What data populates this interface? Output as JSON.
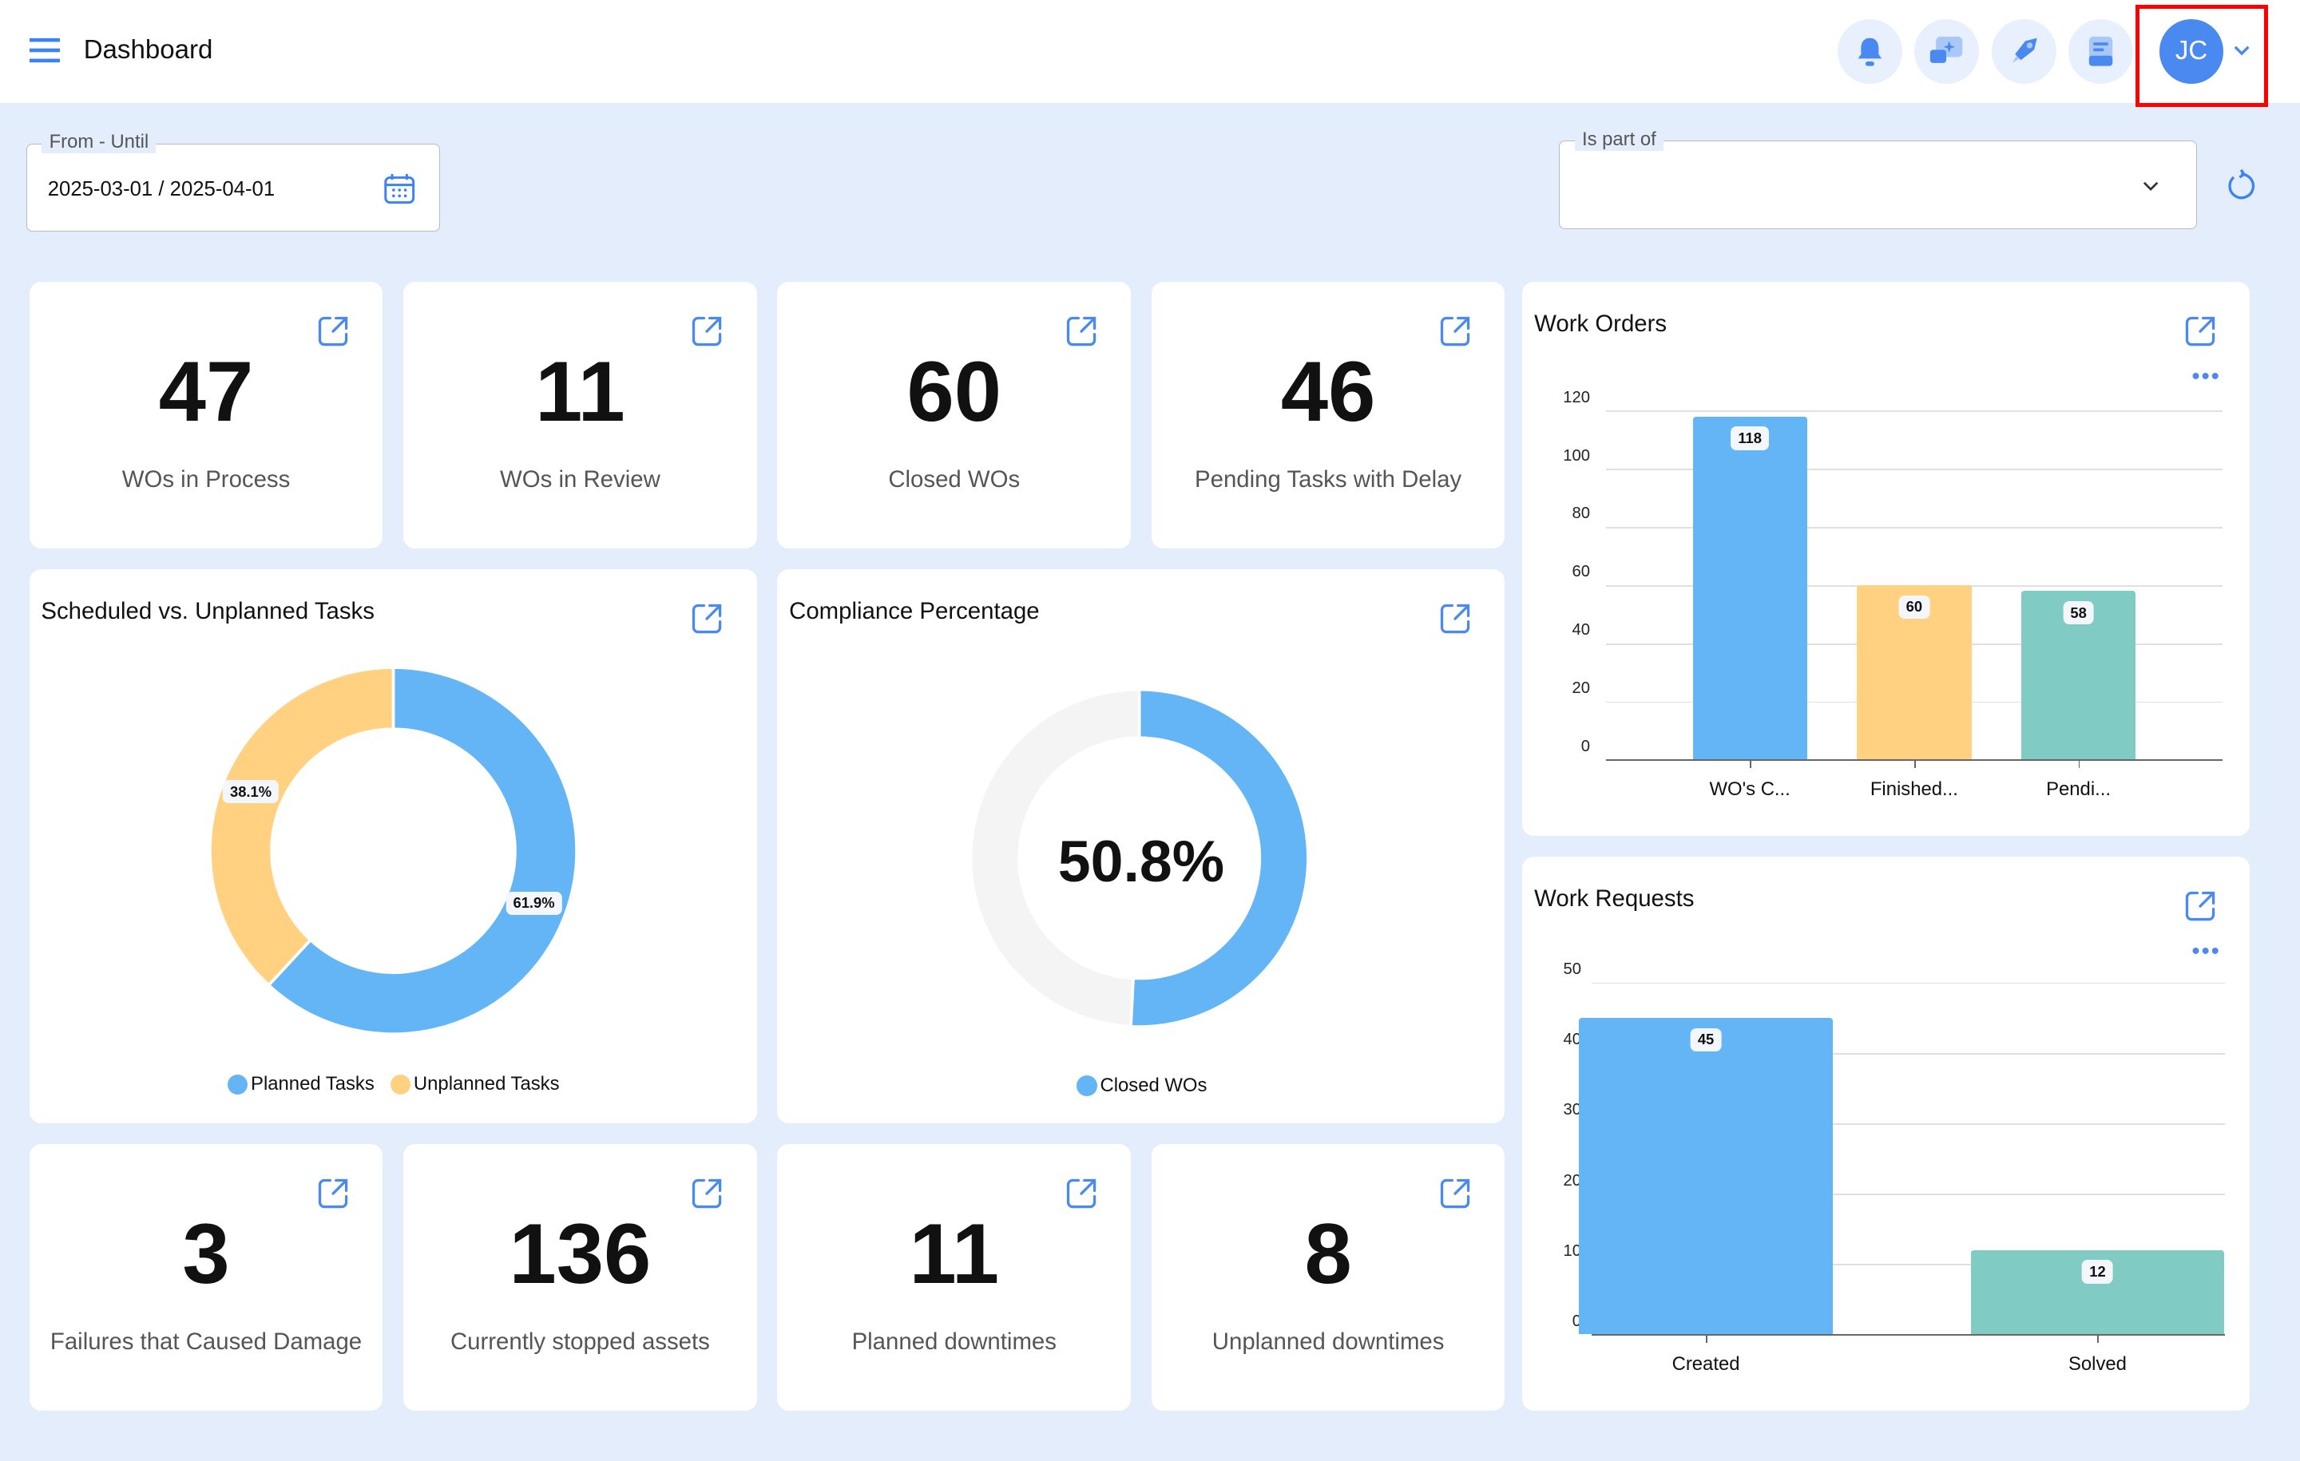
{
  "header": {
    "title": "Dashboard",
    "avatar_initials": "JC",
    "icons": [
      "bell-icon",
      "ai-chat-icon",
      "rocket-icon",
      "book-icon"
    ]
  },
  "filters": {
    "date_label": "From - Until",
    "date_value": "2025-03-01 / 2025-04-01",
    "part_of_label": "Is part of",
    "part_of_value": ""
  },
  "kpis_top": [
    {
      "value": "47",
      "label": "WOs in Process"
    },
    {
      "value": "11",
      "label": "WOs in Review"
    },
    {
      "value": "60",
      "label": "Closed WOs"
    },
    {
      "value": "46",
      "label": "Pending Tasks with Delay"
    }
  ],
  "kpis_bottom": [
    {
      "value": "3",
      "label": "Failures that Caused Damage"
    },
    {
      "value": "136",
      "label": "Currently stopped assets"
    },
    {
      "value": "11",
      "label": "Planned downtimes"
    },
    {
      "value": "8",
      "label": "Unplanned downtimes"
    }
  ],
  "colors": {
    "blue": "#64b5f6",
    "yellow": "#ffd180",
    "teal": "#80cbc4",
    "accent": "#4a8af0",
    "highlight": "#ff0000"
  },
  "chart_data": [
    {
      "type": "pie",
      "title": "Scheduled vs. Unplanned Tasks",
      "donut": true,
      "slices": [
        {
          "name": "Planned Tasks",
          "value": 61.9,
          "label": "61.9%"
        },
        {
          "name": "Unplanned Tasks",
          "value": 38.1,
          "label": "38.1%"
        }
      ],
      "legend": "bottom"
    },
    {
      "type": "pie",
      "title": "Compliance Percentage",
      "donut": true,
      "center_label": "50.8%",
      "slices": [
        {
          "name": "Closed WOs",
          "value": 50.8
        }
      ],
      "legend": "bottom"
    },
    {
      "type": "bar",
      "title": "Work Orders",
      "categories": [
        "WO's C...",
        "Finished...",
        "Pendi..."
      ],
      "values": [
        118,
        60,
        58
      ],
      "ylim": [
        0,
        120
      ],
      "yticks": [
        "0",
        "20",
        "40",
        "60",
        "80",
        "100",
        "120"
      ],
      "grid": true
    },
    {
      "type": "bar",
      "title": "Work Requests",
      "categories": [
        "Created",
        "Solved"
      ],
      "values": [
        45,
        12
      ],
      "ylim": [
        0,
        50
      ],
      "yticks": [
        "0",
        "10",
        "20",
        "30",
        "40",
        "50"
      ],
      "grid": true
    }
  ]
}
